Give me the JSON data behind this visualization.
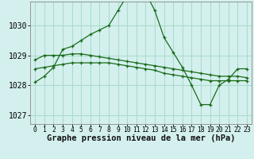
{
  "title": "Graphe pression niveau de la mer (hPa)",
  "background_color": "#d4f0ee",
  "grid_color": "#aaddcc",
  "line_color": "#1a6b1a",
  "xlim": [
    -0.5,
    23.5
  ],
  "ylim": [
    1026.7,
    1030.8
  ],
  "yticks": [
    1027,
    1028,
    1029,
    1030
  ],
  "xticks": [
    0,
    1,
    2,
    3,
    4,
    5,
    6,
    7,
    8,
    9,
    10,
    11,
    12,
    13,
    14,
    15,
    16,
    17,
    18,
    19,
    20,
    21,
    22,
    23
  ],
  "series1_x": [
    0,
    1,
    2,
    3,
    4,
    5,
    6,
    7,
    8,
    9,
    10,
    11,
    12,
    13,
    14,
    15,
    16,
    17,
    18,
    19,
    20,
    21,
    22,
    23
  ],
  "series1_y": [
    1028.1,
    1028.3,
    1028.6,
    1029.2,
    1029.3,
    1029.5,
    1029.7,
    1029.85,
    1030.0,
    1030.5,
    1031.0,
    1031.15,
    1031.1,
    1030.5,
    1029.6,
    1029.1,
    1028.6,
    1028.0,
    1027.35,
    1027.35,
    1028.0,
    1028.2,
    1028.55,
    1028.55
  ],
  "series2_x": [
    0,
    1,
    2,
    3,
    4,
    5,
    6,
    7,
    8,
    9,
    10,
    11,
    12,
    13,
    14,
    15,
    16,
    17,
    18,
    19,
    20,
    21,
    22,
    23
  ],
  "series2_y": [
    1028.85,
    1029.0,
    1029.0,
    1029.0,
    1029.05,
    1029.05,
    1029.0,
    1028.95,
    1028.9,
    1028.85,
    1028.8,
    1028.75,
    1028.7,
    1028.65,
    1028.6,
    1028.55,
    1028.5,
    1028.45,
    1028.4,
    1028.35,
    1028.3,
    1028.3,
    1028.3,
    1028.25
  ],
  "series3_x": [
    0,
    1,
    2,
    3,
    4,
    5,
    6,
    7,
    8,
    9,
    10,
    11,
    12,
    13,
    14,
    15,
    16,
    17,
    18,
    19,
    20,
    21,
    22,
    23
  ],
  "series3_y": [
    1028.55,
    1028.6,
    1028.65,
    1028.7,
    1028.75,
    1028.75,
    1028.75,
    1028.75,
    1028.75,
    1028.7,
    1028.65,
    1028.6,
    1028.55,
    1028.5,
    1028.4,
    1028.35,
    1028.3,
    1028.25,
    1028.2,
    1028.15,
    1028.15,
    1028.15,
    1028.15,
    1028.15
  ],
  "xlabel_fontsize": 7.0,
  "ytick_fontsize": 7.0,
  "xtick_fontsize": 5.8,
  "title_fontsize": 7.5
}
